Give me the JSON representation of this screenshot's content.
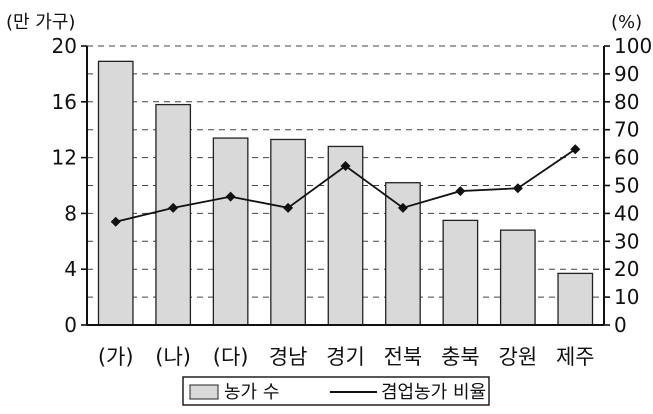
{
  "chart_data": {
    "type": "bar",
    "title": "",
    "categories": [
      "(가)",
      "(나)",
      "(다)",
      "경남",
      "경기",
      "전북",
      "충북",
      "강원",
      "제주"
    ],
    "left_axis_unit": "(만 가구)",
    "right_axis_unit": "(%)",
    "left_ticks": [
      "0",
      "4",
      "8",
      "12",
      "16",
      "20"
    ],
    "right_ticks": [
      "0",
      "10",
      "20",
      "30",
      "40",
      "50",
      "60",
      "70",
      "80",
      "90",
      "100"
    ],
    "ylim_left": [
      0,
      20
    ],
    "ylim_right": [
      0,
      100
    ],
    "grid": "dashed-horizontal",
    "legend_position": "bottom",
    "series": [
      {
        "name": "농가 수",
        "type": "bar",
        "axis": "left",
        "values": [
          18.9,
          15.8,
          13.4,
          13.3,
          12.8,
          10.2,
          7.5,
          6.8,
          3.7
        ]
      },
      {
        "name": "겸업농가 비율",
        "type": "line",
        "axis": "right",
        "values": [
          37,
          42,
          46,
          42,
          57,
          42,
          48,
          49,
          63
        ]
      }
    ],
    "colors": {
      "bar_fill": "#d9d9d9",
      "bar_stroke": "#222222",
      "line": "#111111",
      "grid": "#444444",
      "axis": "#111111"
    }
  }
}
